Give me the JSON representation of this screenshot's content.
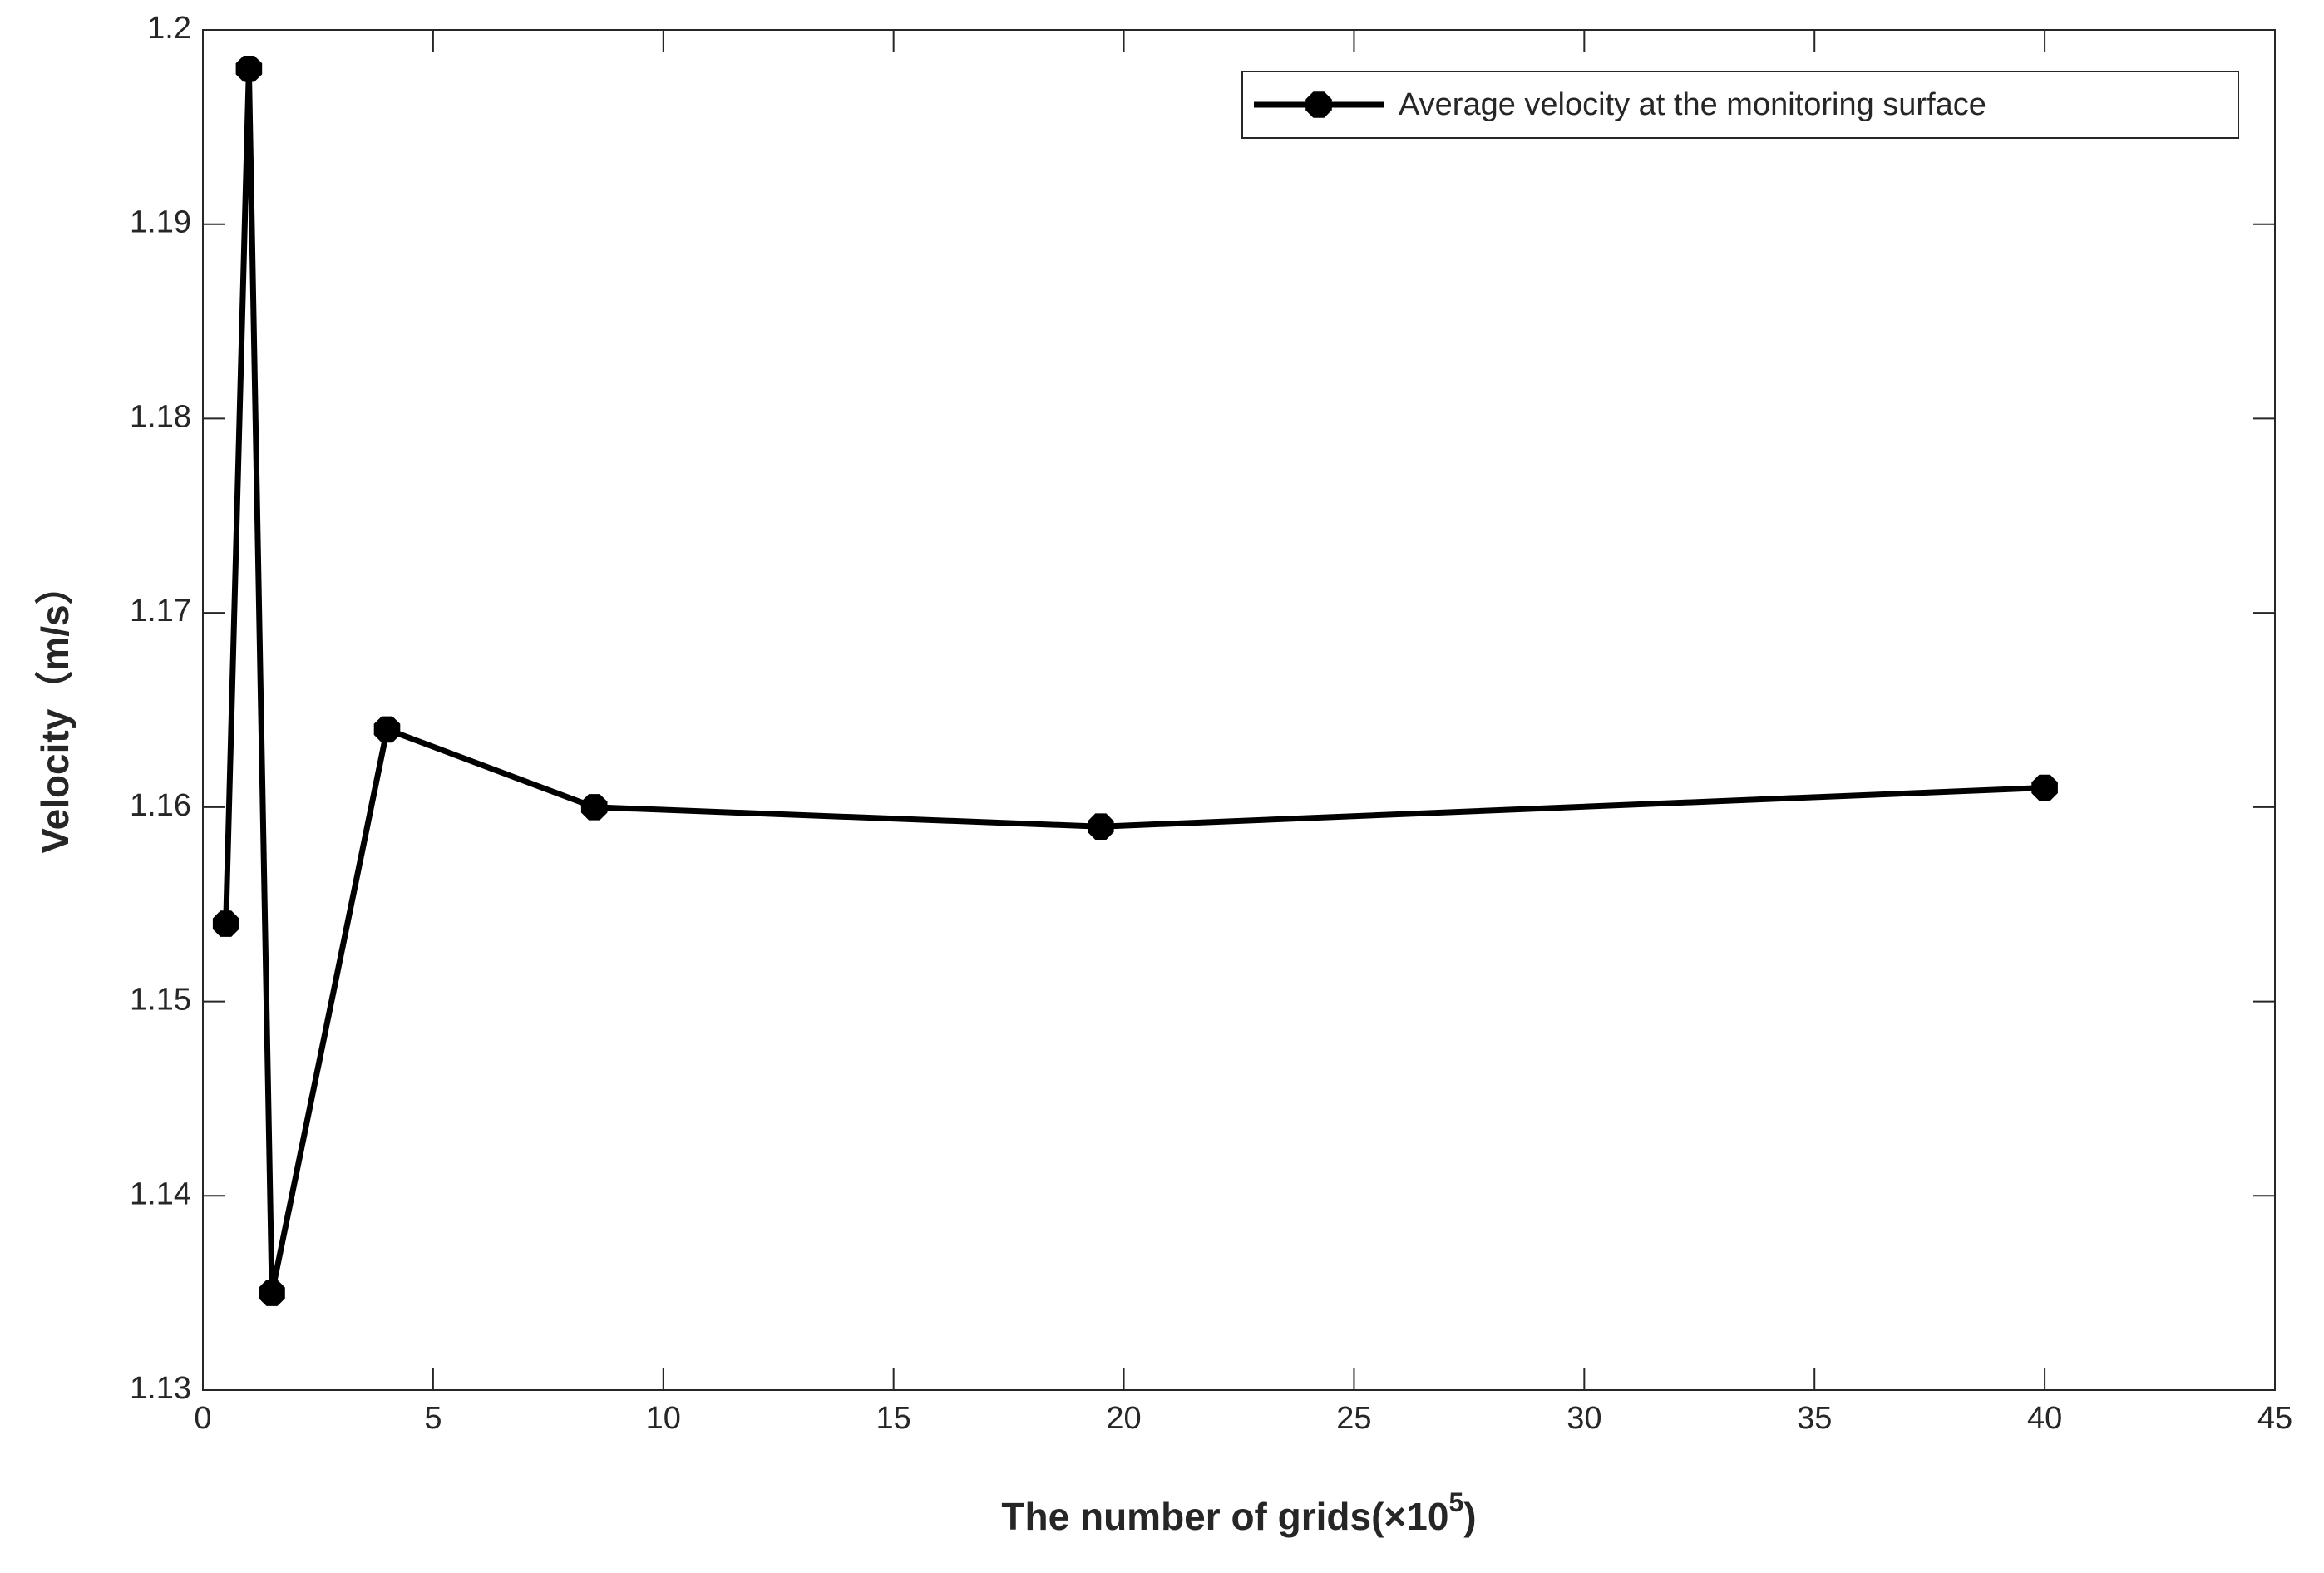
{
  "chart_data": {
    "type": "line",
    "xlabel": [
      "The number of grids(×10",
      "5",
      ")"
    ],
    "ylabel": "Velocity（m/s）",
    "x": [
      0.5,
      1.0,
      1.5,
      4.0,
      8.5,
      19.5,
      40
    ],
    "series": [
      {
        "name": "Average velocity at the monitoring surface",
        "color": "#000000",
        "values": [
          1.154,
          1.198,
          1.135,
          1.164,
          1.16,
          1.159,
          1.161
        ]
      }
    ],
    "xlim": [
      0,
      45
    ],
    "xticks": [
      0,
      5,
      10,
      15,
      20,
      25,
      30,
      35,
      40,
      45
    ],
    "ylim": [
      1.13,
      1.2
    ],
    "yticks": [
      1.13,
      1.14,
      1.15,
      1.16,
      1.17,
      1.18,
      1.19,
      1.2
    ],
    "grid": false,
    "legend": "upper right"
  }
}
